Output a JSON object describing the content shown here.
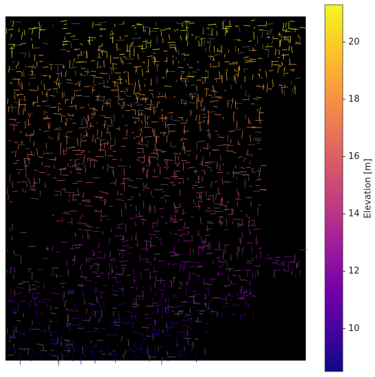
{
  "colorbar": {
    "label": "Elevation [m]",
    "lim": [
      8.5,
      21.3
    ],
    "ticks": [
      10,
      12,
      14,
      16,
      18,
      20
    ]
  }
}
